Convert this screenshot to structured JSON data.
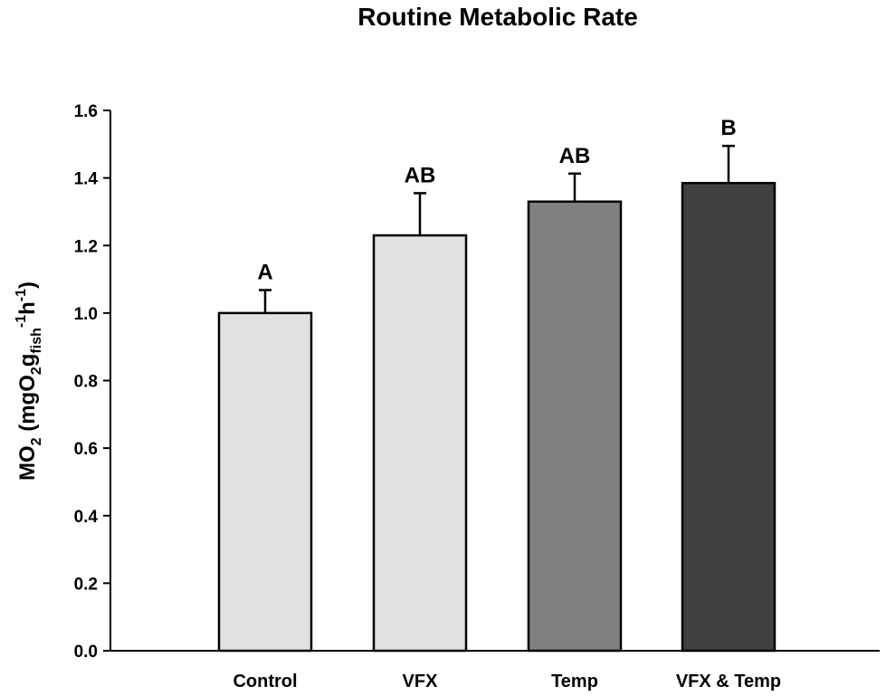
{
  "chart_data": {
    "type": "bar",
    "title": "Routine Metabolic Rate",
    "xlabel": "",
    "ylabel": {
      "parts": [
        {
          "text": "MO",
          "kind": "normal"
        },
        {
          "text": "2",
          "kind": "sub"
        },
        {
          "text": " (mgO",
          "kind": "normal"
        },
        {
          "text": "2",
          "kind": "sub"
        },
        {
          "text": "g",
          "kind": "normal"
        },
        {
          "text": "fish",
          "kind": "sub"
        },
        {
          "text": "-1",
          "kind": "sup"
        },
        {
          "text": "h",
          "kind": "normal"
        },
        {
          "text": "-1",
          "kind": "sup"
        },
        {
          "text": ")",
          "kind": "normal"
        }
      ]
    },
    "ylim": [
      0,
      1.6
    ],
    "yticks": [
      "0.0",
      "0.2",
      "0.4",
      "0.6",
      "0.8",
      "1.0",
      "1.2",
      "1.4",
      "1.6"
    ],
    "categories": [
      "Control",
      "VFX",
      "Temp",
      "VFX & Temp"
    ],
    "values": [
      1.0,
      1.23,
      1.33,
      1.385
    ],
    "errors": [
      0.068,
      0.125,
      0.083,
      0.11
    ],
    "significance": [
      "A",
      "AB",
      "AB",
      "B"
    ],
    "colors": [
      "#e1e1e1",
      "#e1e1e1",
      "#808080",
      "#404040"
    ],
    "grid": false
  }
}
